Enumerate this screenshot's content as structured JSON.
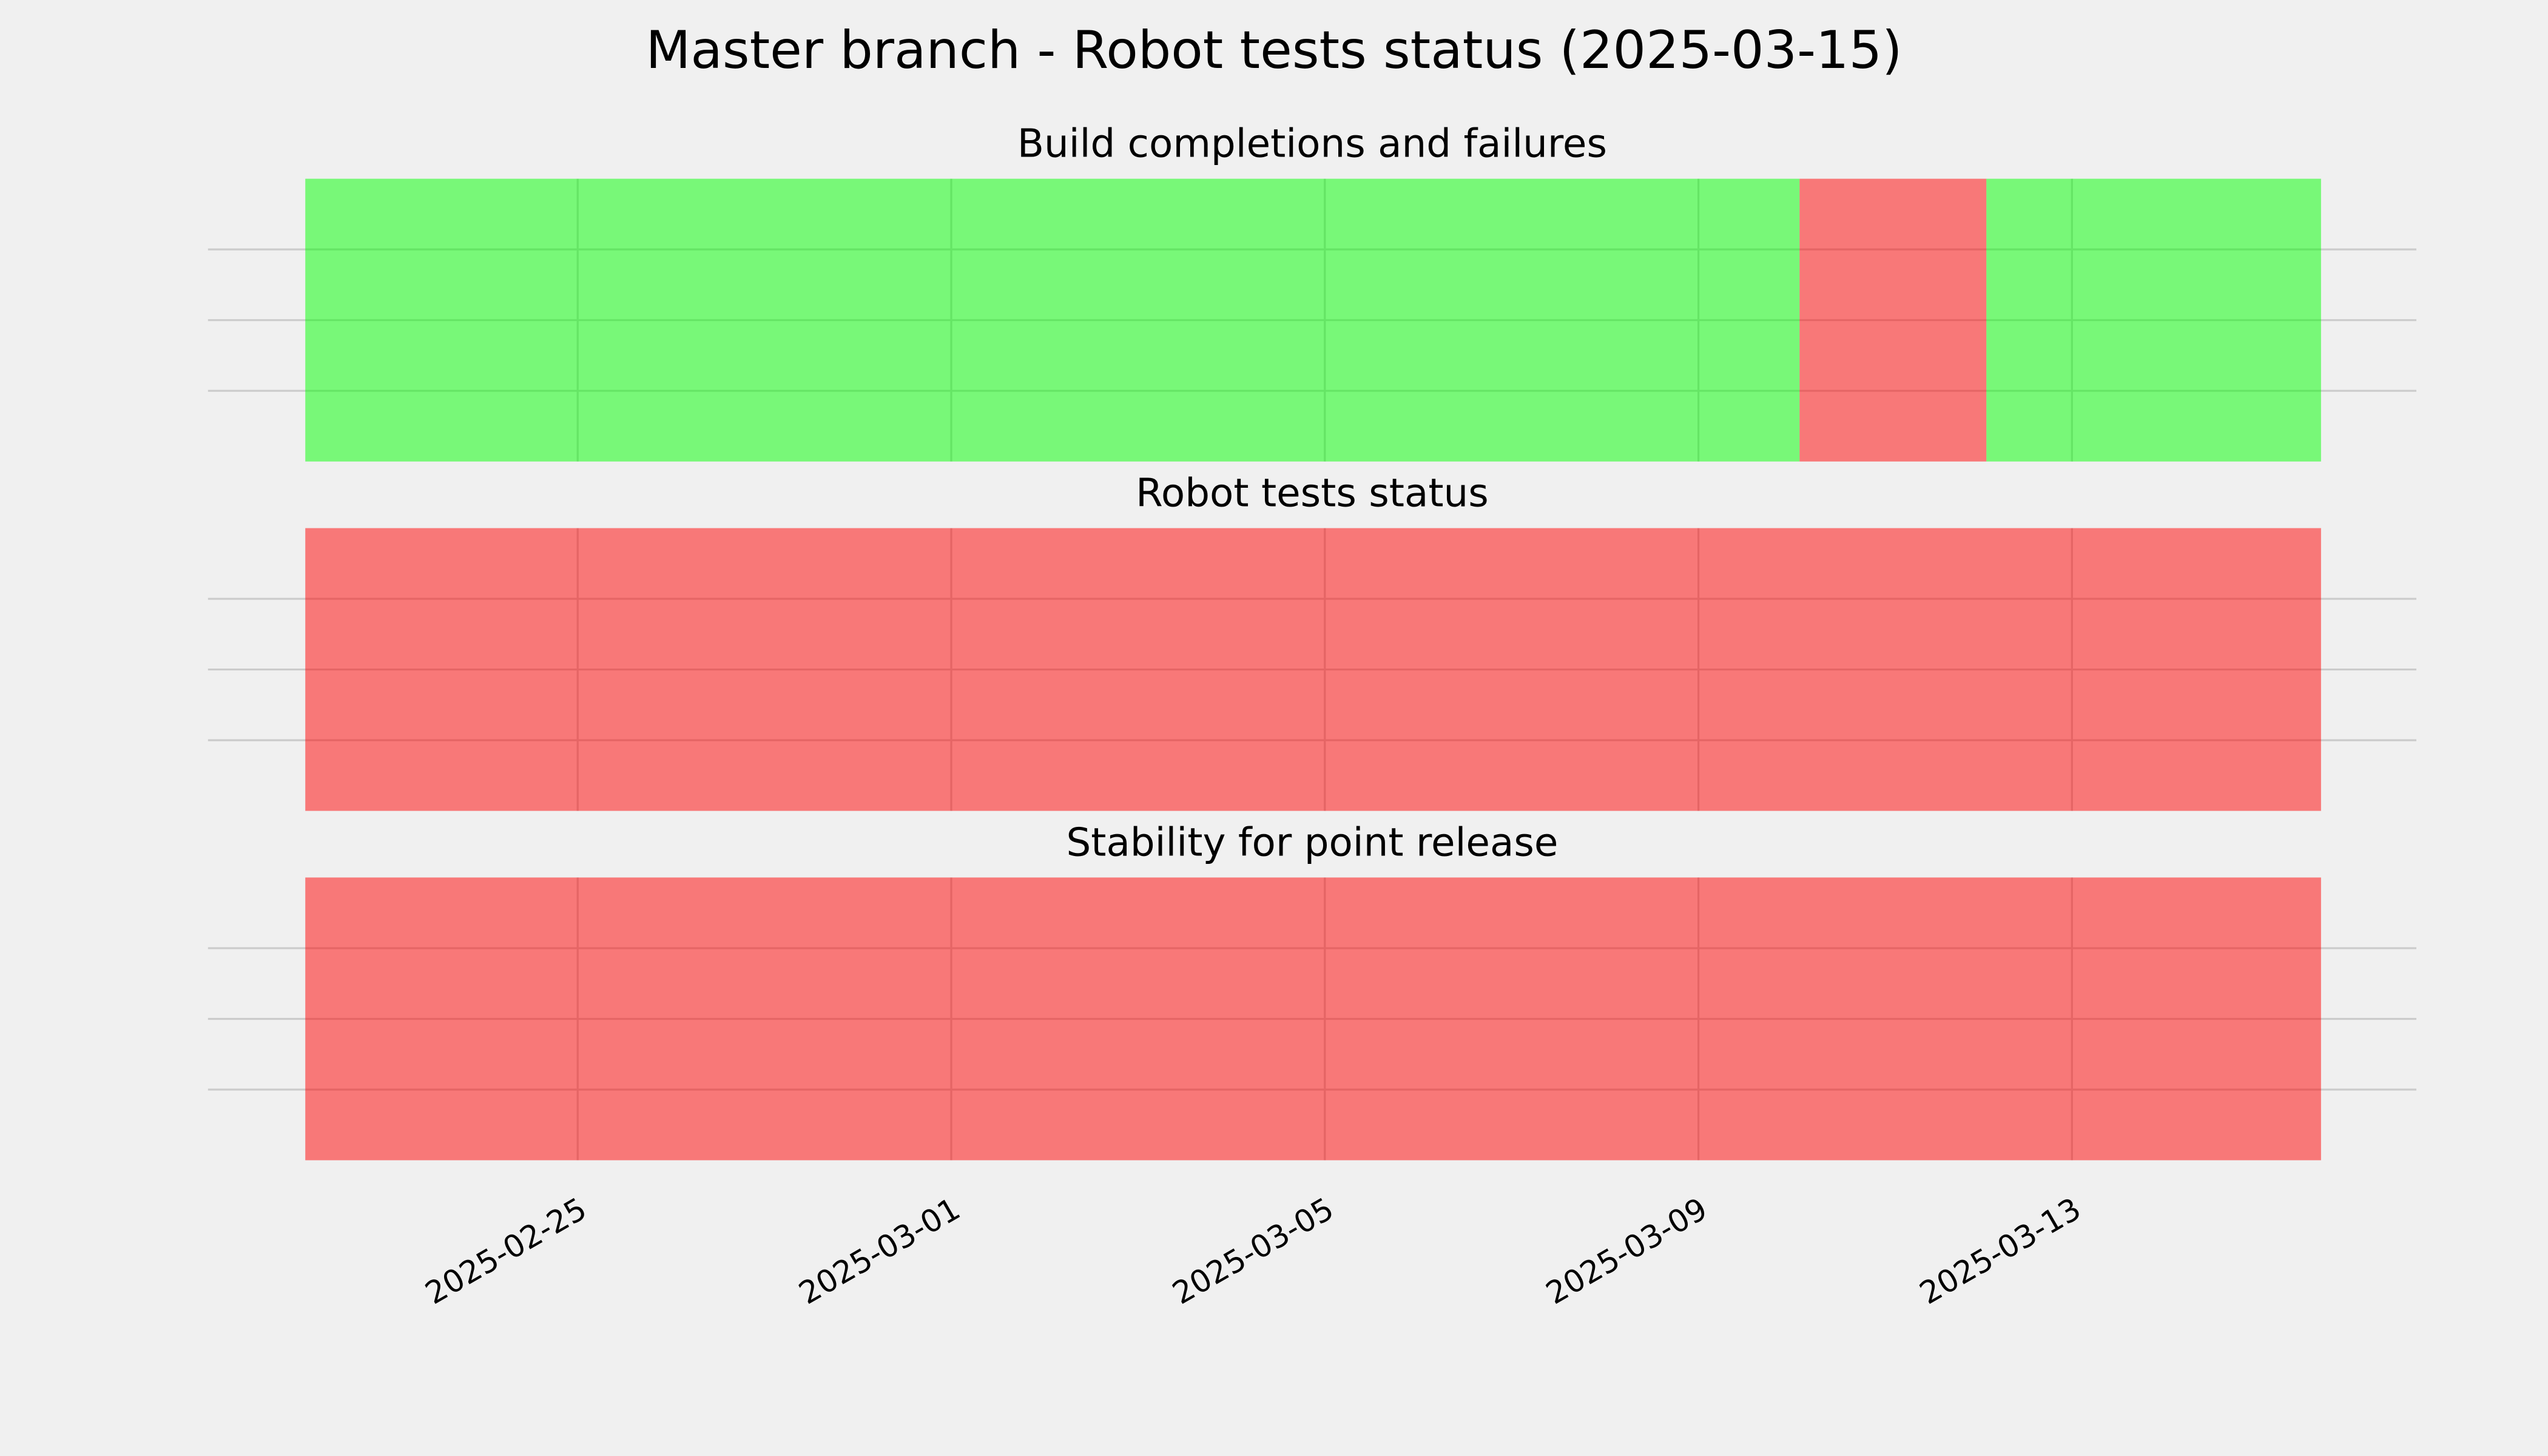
{
  "title": "Master branch - Robot tests status (2025-03-15)",
  "chart_data": [
    {
      "type": "timeline",
      "title": "Build completions and failures",
      "xlim": [
        "2025-02-21T01:00",
        "2025-03-16T16:30"
      ],
      "xticks": [
        "2025-02-25",
        "2025-03-01",
        "2025-03-05",
        "2025-03-09",
        "2025-03-13"
      ],
      "ylim": [
        0,
        1
      ],
      "yticks": [
        0.25,
        0.5,
        0.75
      ],
      "grid": true,
      "alpha": 0.5,
      "spans": [
        {
          "start": "2025-02-22T02:00",
          "end": "2025-03-10T02:00",
          "color": "#00ff00"
        },
        {
          "start": "2025-03-10T02:00",
          "end": "2025-03-12T02:00",
          "color": "#ff0000"
        },
        {
          "start": "2025-03-12T02:00",
          "end": "2025-03-15T16:00",
          "color": "#00ff00"
        }
      ]
    },
    {
      "type": "timeline",
      "title": "Robot tests status",
      "xlim": [
        "2025-02-21T01:00",
        "2025-03-16T16:30"
      ],
      "xticks": [
        "2025-02-25",
        "2025-03-01",
        "2025-03-05",
        "2025-03-09",
        "2025-03-13"
      ],
      "ylim": [
        0,
        1
      ],
      "yticks": [
        0.25,
        0.5,
        0.75
      ],
      "grid": true,
      "alpha": 0.5,
      "spans": [
        {
          "start": "2025-02-22T02:00",
          "end": "2025-03-15T16:00",
          "color": "#ff0000"
        }
      ]
    },
    {
      "type": "timeline",
      "title": "Stability for point release",
      "xlim": [
        "2025-02-21T01:00",
        "2025-03-16T16:30"
      ],
      "xticks": [
        "2025-02-25",
        "2025-03-01",
        "2025-03-05",
        "2025-03-09",
        "2025-03-13"
      ],
      "ylim": [
        0,
        1
      ],
      "yticks": [
        0.25,
        0.5,
        0.75
      ],
      "grid": true,
      "alpha": 0.5,
      "spans": [
        {
          "start": "2025-02-22T02:00",
          "end": "2025-03-15T16:00",
          "color": "#ff0000"
        }
      ]
    }
  ]
}
